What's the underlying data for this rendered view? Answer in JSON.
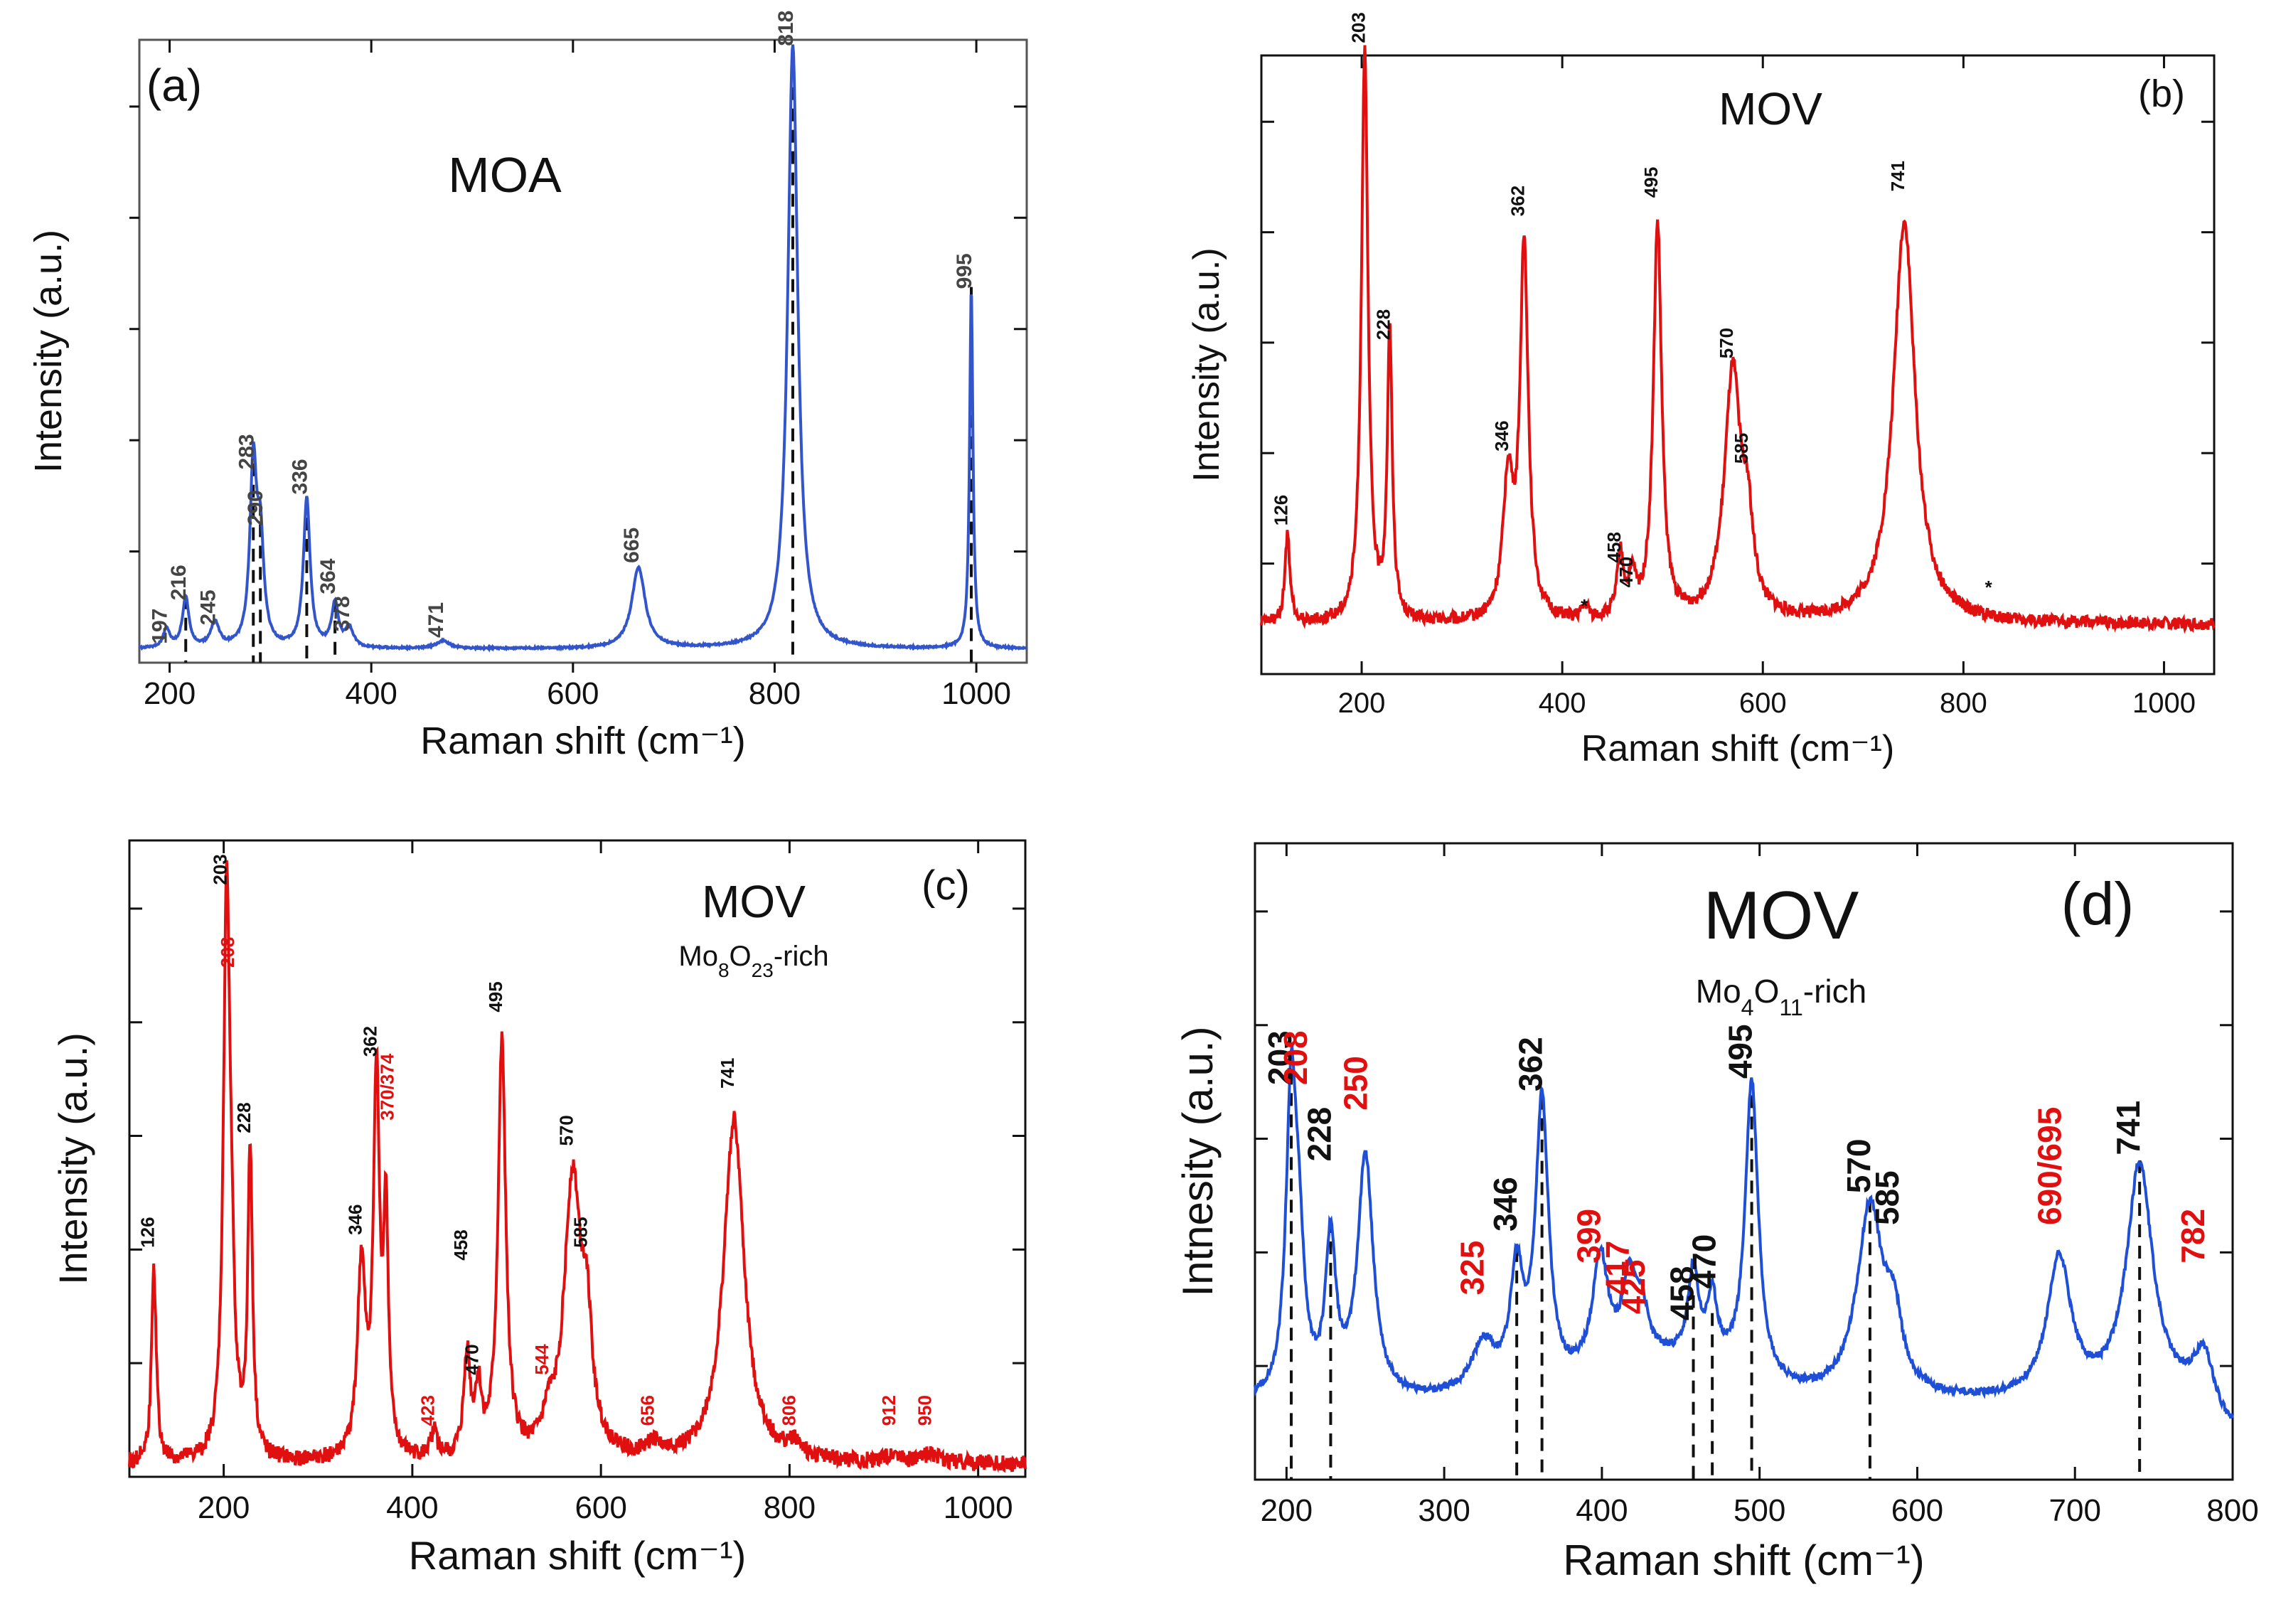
{
  "colors": {
    "blue": "#3355cc",
    "red": "#e01010",
    "black": "#111111",
    "blue_light": "#1f4fd6"
  },
  "chart_data": [
    {
      "id": "a",
      "type": "line",
      "panel_label": "(a)",
      "title": "MOA",
      "subtitle": null,
      "xlabel": "Raman shift (cm-1)",
      "ylabel": "Intensity (a.u.)",
      "xlim": [
        170,
        1050
      ],
      "ylim": [
        0,
        100
      ],
      "xticks": [
        200,
        400,
        600,
        800,
        1000
      ],
      "color": "blue",
      "baseline": 2.2,
      "noise": 0.15,
      "peaks": [
        {
          "x": 197,
          "h": 3,
          "w": 4
        },
        {
          "x": 216,
          "h": 8,
          "w": 4
        },
        {
          "x": 245,
          "h": 4,
          "w": 5
        },
        {
          "x": 283,
          "h": 29,
          "w": 4
        },
        {
          "x": 290,
          "h": 16,
          "w": 4
        },
        {
          "x": 336,
          "h": 24,
          "w": 4
        },
        {
          "x": 364,
          "h": 7,
          "w": 4
        },
        {
          "x": 378,
          "h": 3,
          "w": 5
        },
        {
          "x": 471,
          "h": 1.2,
          "w": 8
        },
        {
          "x": 665,
          "h": 13,
          "w": 8
        },
        {
          "x": 818,
          "h": 97,
          "w": 6
        },
        {
          "x": 995,
          "h": 58,
          "w": 2
        }
      ],
      "labels": [
        {
          "text": "197",
          "x": 197,
          "h": 3
        },
        {
          "text": "216",
          "x": 216,
          "h": 10
        },
        {
          "text": "245",
          "x": 245,
          "h": 6
        },
        {
          "text": "283",
          "x": 283,
          "h": 31
        },
        {
          "text": "290",
          "x": 292,
          "h": 22
        },
        {
          "text": "336",
          "x": 336,
          "h": 27
        },
        {
          "text": "364",
          "x": 364,
          "h": 11
        },
        {
          "text": "378",
          "x": 378,
          "h": 5
        },
        {
          "text": "471",
          "x": 471,
          "h": 4
        },
        {
          "text": "665",
          "x": 665,
          "h": 16
        },
        {
          "text": "818",
          "x": 818,
          "h": 99
        },
        {
          "text": "995",
          "x": 995,
          "h": 60
        }
      ],
      "dashed_lines": [
        216,
        283,
        290,
        336,
        364,
        818,
        995
      ],
      "label_color": "#444444"
    },
    {
      "id": "b",
      "type": "line",
      "panel_label": "(b)",
      "title": "MOV",
      "subtitle": null,
      "xlabel": "Raman shift (cm-1)",
      "ylabel": "Intensity (a.u.)",
      "xlim": [
        100,
        1050
      ],
      "ylim": [
        0,
        100
      ],
      "xticks": [
        200,
        400,
        600,
        800,
        1000
      ],
      "color": "red",
      "baseline": 8,
      "noise": 1.0,
      "peaks": [
        {
          "x": 126,
          "h": 14,
          "w": 3
        },
        {
          "x": 203,
          "h": 92,
          "w": 4
        },
        {
          "x": 228,
          "h": 46,
          "w": 3
        },
        {
          "x": 346,
          "h": 22,
          "w": 6
        },
        {
          "x": 362,
          "h": 60,
          "w": 5
        },
        {
          "x": 423,
          "h": 2,
          "w": 4
        },
        {
          "x": 458,
          "h": 10,
          "w": 4
        },
        {
          "x": 470,
          "h": 6,
          "w": 4
        },
        {
          "x": 495,
          "h": 64,
          "w": 5
        },
        {
          "x": 570,
          "h": 40,
          "w": 10
        },
        {
          "x": 585,
          "h": 12,
          "w": 6
        },
        {
          "x": 741,
          "h": 65,
          "w": 13
        }
      ],
      "labels": [
        {
          "text": "126",
          "x": 126,
          "h": 24
        },
        {
          "text": "203",
          "x": 203,
          "h": 102
        },
        {
          "text": "228",
          "x": 228,
          "h": 54
        },
        {
          "text": "346",
          "x": 346,
          "h": 36
        },
        {
          "text": "362",
          "x": 362,
          "h": 74
        },
        {
          "text": "458",
          "x": 458,
          "h": 18
        },
        {
          "text": "470",
          "x": 470,
          "h": 14
        },
        {
          "text": "495",
          "x": 495,
          "h": 77
        },
        {
          "text": "570",
          "x": 570,
          "h": 51
        },
        {
          "text": "585",
          "x": 585,
          "h": 34
        },
        {
          "text": "741",
          "x": 741,
          "h": 78
        },
        {
          "text": "*",
          "x": 422,
          "h": 10
        },
        {
          "text": "*",
          "x": 825,
          "h": 13
        }
      ],
      "dashed_lines": [],
      "label_color": "#111111"
    },
    {
      "id": "c",
      "type": "line",
      "panel_label": "(c)",
      "title": "MOV",
      "subtitle": "Mo8O23-rich",
      "xlabel": "Raman shift (cm-1)",
      "ylabel": "Intensity (a.u.)",
      "xlim": [
        100,
        1050
      ],
      "ylim": [
        0,
        100
      ],
      "xticks": [
        200,
        400,
        600,
        800,
        1000
      ],
      "color": "red",
      "baseline": 2,
      "noise": 1.3,
      "peaks": [
        {
          "x": 126,
          "h": 30,
          "w": 3
        },
        {
          "x": 203,
          "h": 86,
          "w": 4
        },
        {
          "x": 208,
          "h": 20,
          "w": 4
        },
        {
          "x": 228,
          "h": 48,
          "w": 3
        },
        {
          "x": 346,
          "h": 30,
          "w": 5
        },
        {
          "x": 362,
          "h": 59,
          "w": 4
        },
        {
          "x": 372,
          "h": 36,
          "w": 3
        },
        {
          "x": 423,
          "h": 4,
          "w": 4
        },
        {
          "x": 458,
          "h": 16,
          "w": 4
        },
        {
          "x": 470,
          "h": 10,
          "w": 4
        },
        {
          "x": 495,
          "h": 65,
          "w": 5
        },
        {
          "x": 544,
          "h": 4,
          "w": 6
        },
        {
          "x": 570,
          "h": 44,
          "w": 11
        },
        {
          "x": 585,
          "h": 16,
          "w": 6
        },
        {
          "x": 656,
          "h": 2,
          "w": 8
        },
        {
          "x": 741,
          "h": 54,
          "w": 13
        },
        {
          "x": 806,
          "h": 2,
          "w": 8
        },
        {
          "x": 912,
          "h": 1.5,
          "w": 8
        },
        {
          "x": 950,
          "h": 1.5,
          "w": 8
        }
      ],
      "labels": [
        {
          "text": "126",
          "x": 126,
          "h": 36,
          "red": false
        },
        {
          "text": "203",
          "x": 203,
          "h": 93,
          "red": false
        },
        {
          "text": "208",
          "x": 211,
          "h": 80,
          "red": true
        },
        {
          "text": "228",
          "x": 228,
          "h": 54,
          "red": false
        },
        {
          "text": "346",
          "x": 346,
          "h": 38,
          "red": false
        },
        {
          "text": "362",
          "x": 362,
          "h": 66,
          "red": false
        },
        {
          "text": "370/374",
          "x": 380,
          "h": 56,
          "red": true
        },
        {
          "text": "423",
          "x": 423,
          "h": 8,
          "red": true
        },
        {
          "text": "458",
          "x": 458,
          "h": 34,
          "red": false
        },
        {
          "text": "470",
          "x": 470,
          "h": 16,
          "red": false
        },
        {
          "text": "495",
          "x": 495,
          "h": 73,
          "red": false
        },
        {
          "text": "544",
          "x": 544,
          "h": 16,
          "red": true
        },
        {
          "text": "570",
          "x": 570,
          "h": 52,
          "red": false
        },
        {
          "text": "585",
          "x": 585,
          "h": 36,
          "red": false
        },
        {
          "text": "656",
          "x": 656,
          "h": 8,
          "red": true
        },
        {
          "text": "741",
          "x": 741,
          "h": 61,
          "red": false
        },
        {
          "text": "806",
          "x": 806,
          "h": 8,
          "red": true
        },
        {
          "text": "912",
          "x": 912,
          "h": 8,
          "red": true
        },
        {
          "text": "950",
          "x": 950,
          "h": 8,
          "red": true
        }
      ],
      "dashed_lines": [],
      "label_color": "#111111"
    },
    {
      "id": "d",
      "type": "line",
      "panel_label": "(d)",
      "title": "MOV",
      "subtitle": "Mo4O11-rich",
      "xlabel": "Raman shift (cm-1)",
      "ylabel": "Intnesity (a.u.)",
      "xlim": [
        180,
        800
      ],
      "ylim": [
        0,
        100
      ],
      "xticks": [
        200,
        300,
        400,
        500,
        600,
        700,
        800
      ],
      "color": "blue_light",
      "baseline": 12,
      "noise": 0.6,
      "peaks": [
        {
          "x": 203,
          "h": 47,
          "w": 4
        },
        {
          "x": 208,
          "h": 18,
          "w": 4
        },
        {
          "x": 228,
          "h": 24,
          "w": 4
        },
        {
          "x": 250,
          "h": 38,
          "w": 6
        },
        {
          "x": 325,
          "h": 8,
          "w": 10
        },
        {
          "x": 346,
          "h": 18,
          "w": 5
        },
        {
          "x": 362,
          "h": 45,
          "w": 5
        },
        {
          "x": 399,
          "h": 18,
          "w": 6
        },
        {
          "x": 417,
          "h": 12,
          "w": 5
        },
        {
          "x": 425,
          "h": 8,
          "w": 5
        },
        {
          "x": 458,
          "h": 14,
          "w": 4
        },
        {
          "x": 470,
          "h": 10,
          "w": 4
        },
        {
          "x": 495,
          "h": 47,
          "w": 5
        },
        {
          "x": 570,
          "h": 30,
          "w": 10
        },
        {
          "x": 585,
          "h": 10,
          "w": 6
        },
        {
          "x": 690,
          "h": 22,
          "w": 9
        },
        {
          "x": 741,
          "h": 37,
          "w": 10
        },
        {
          "x": 782,
          "h": 9,
          "w": 8
        }
      ],
      "labels": [
        {
          "text": "203",
          "x": 203,
          "h": 62,
          "red": false
        },
        {
          "text": "208",
          "x": 213,
          "h": 62,
          "red": true
        },
        {
          "text": "228",
          "x": 228,
          "h": 50,
          "red": false
        },
        {
          "text": "250",
          "x": 251,
          "h": 58,
          "red": true
        },
        {
          "text": "325",
          "x": 325,
          "h": 29,
          "red": true
        },
        {
          "text": "346",
          "x": 346,
          "h": 39,
          "red": false
        },
        {
          "text": "362",
          "x": 362,
          "h": 61,
          "red": false
        },
        {
          "text": "399",
          "x": 399,
          "h": 34,
          "red": true
        },
        {
          "text": "417",
          "x": 417,
          "h": 29,
          "red": true
        },
        {
          "text": "425",
          "x": 427,
          "h": 26,
          "red": true
        },
        {
          "text": "458",
          "x": 458,
          "h": 25,
          "red": false
        },
        {
          "text": "470",
          "x": 472,
          "h": 30,
          "red": false
        },
        {
          "text": "495",
          "x": 495,
          "h": 63,
          "red": false
        },
        {
          "text": "570",
          "x": 570,
          "h": 45,
          "red": false
        },
        {
          "text": "585",
          "x": 588,
          "h": 40,
          "red": false
        },
        {
          "text": "690/695",
          "x": 691,
          "h": 40,
          "red": true
        },
        {
          "text": "741",
          "x": 741,
          "h": 51,
          "red": false
        },
        {
          "text": "782",
          "x": 782,
          "h": 34,
          "red": true
        }
      ],
      "dashed_lines": [
        203,
        228,
        346,
        362,
        458,
        470,
        495,
        570,
        741
      ],
      "label_color": "#111111"
    }
  ]
}
